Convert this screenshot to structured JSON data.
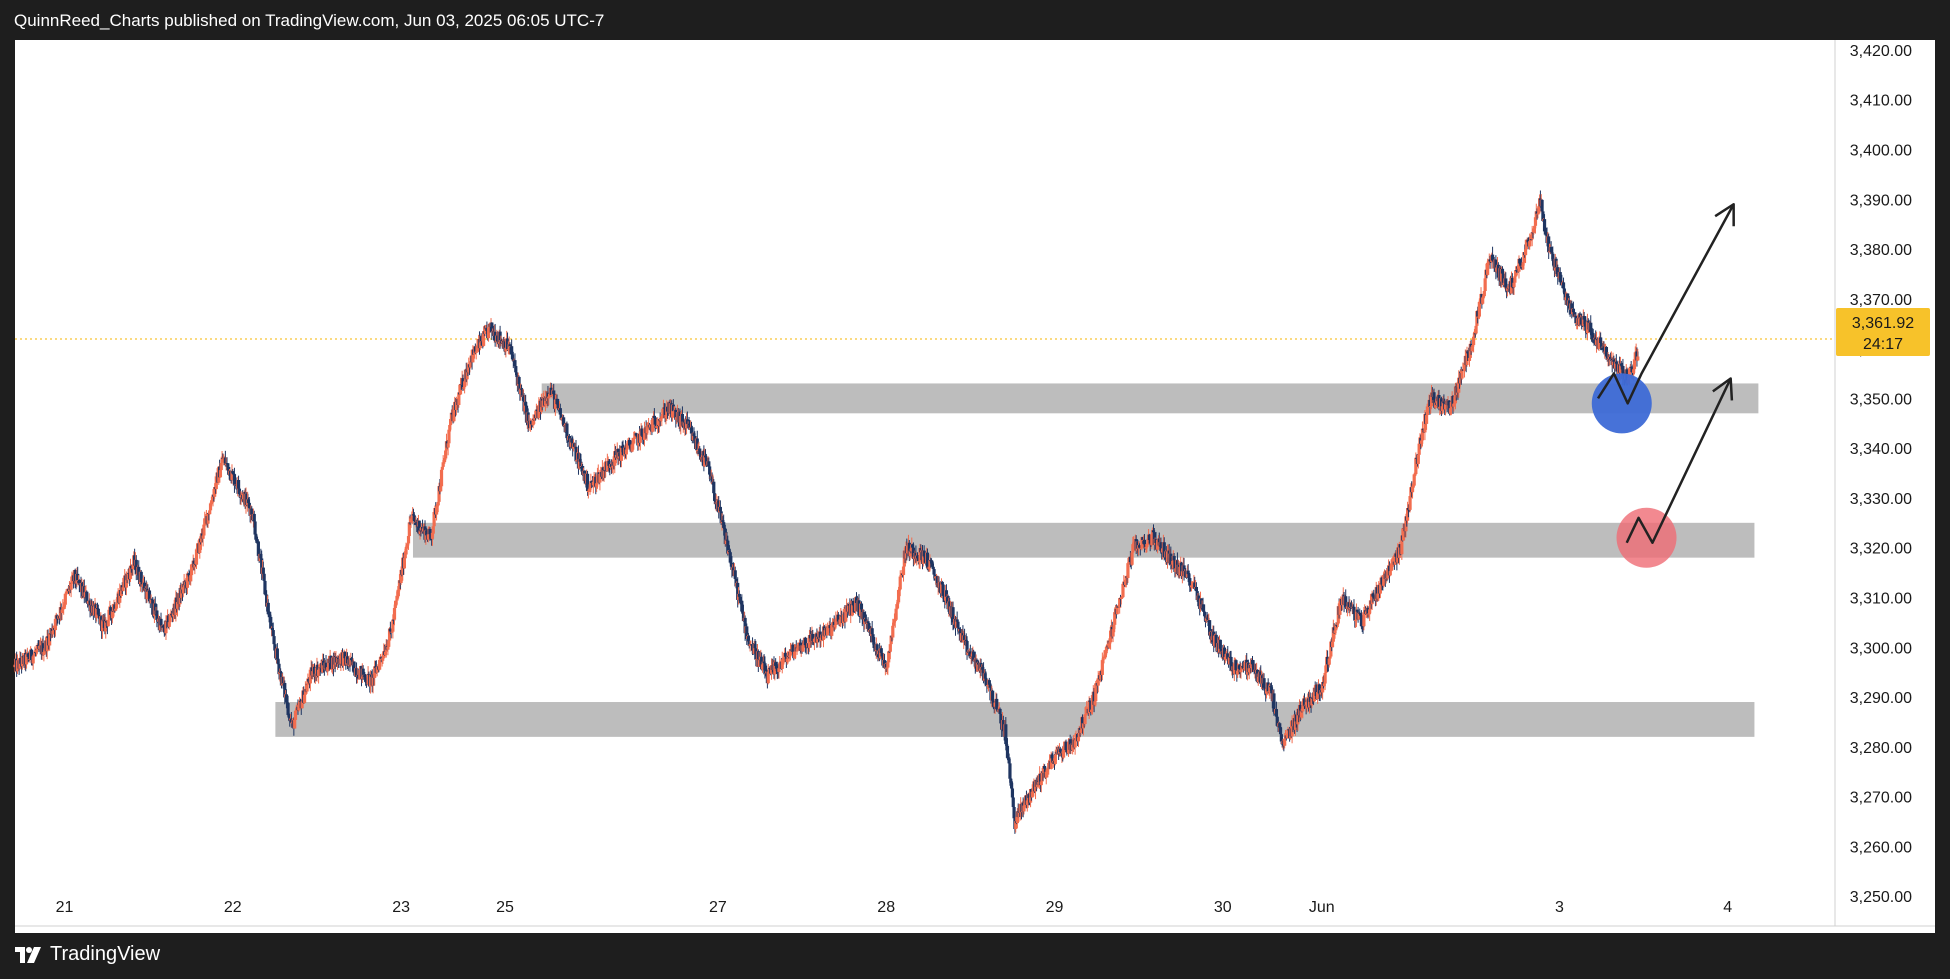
{
  "header": {
    "publish_line": "QuinnReed_Charts published on TradingView.com, Jun 03, 2025 06:05 UTC-7"
  },
  "footer": {
    "brand": "TradingView"
  },
  "price_tag": {
    "price": "3,361.92",
    "countdown": "24:17"
  },
  "colors": {
    "background": "#ffffff",
    "frame": "#1e1e1e",
    "up": "#f26d4f",
    "down": "#1f3561",
    "zone": "#bdbdbd",
    "price_line": "#f7b500",
    "tag": "#f7c22a",
    "blue_marker": "#3d6ad6",
    "red_marker": "#ef6b74",
    "arrow": "#222222"
  },
  "icons": {
    "logo": "tradingview-logo-icon"
  },
  "chart_data": {
    "type": "candlestick",
    "instrument": "",
    "ylim": [
      3244,
      3422
    ],
    "y_ticks": [
      "3,250.00",
      "3,260.00",
      "3,270.00",
      "3,280.00",
      "3,290.00",
      "3,300.00",
      "3,310.00",
      "3,320.00",
      "3,330.00",
      "3,340.00",
      "3,350.00",
      "3,360.00",
      "3,370.00",
      "3,380.00",
      "3,390.00",
      "3,400.00",
      "3,410.00",
      "3,420.00"
    ],
    "x_ticks": [
      {
        "label": "21",
        "t": 5
      },
      {
        "label": "22",
        "t": 22
      },
      {
        "label": "23",
        "t": 39
      },
      {
        "label": "25",
        "t": 49.5
      },
      {
        "label": "27",
        "t": 71
      },
      {
        "label": "28",
        "t": 88
      },
      {
        "label": "29",
        "t": 105
      },
      {
        "label": "30",
        "t": 122
      },
      {
        "label": "Jun",
        "t": 132
      },
      {
        "label": "3",
        "t": 156
      },
      {
        "label": "4",
        "t": 173
      }
    ],
    "last_price": 3361.92,
    "path": [
      [
        0,
        3296
      ],
      [
        3,
        3300
      ],
      [
        6,
        3314
      ],
      [
        9,
        3304
      ],
      [
        12,
        3317
      ],
      [
        15,
        3303
      ],
      [
        18,
        3316
      ],
      [
        21,
        3338
      ],
      [
        24,
        3327
      ],
      [
        26,
        3302
      ],
      [
        28,
        3284
      ],
      [
        30,
        3295
      ],
      [
        33,
        3298
      ],
      [
        36,
        3293
      ],
      [
        38,
        3303
      ],
      [
        40,
        3326
      ],
      [
        42,
        3322
      ],
      [
        44,
        3345
      ],
      [
        46,
        3358
      ],
      [
        48,
        3364
      ],
      [
        50,
        3360
      ],
      [
        52,
        3344
      ],
      [
        54,
        3352
      ],
      [
        56,
        3342
      ],
      [
        58,
        3332
      ],
      [
        60,
        3337
      ],
      [
        63,
        3342
      ],
      [
        66,
        3348
      ],
      [
        68,
        3344
      ],
      [
        70,
        3336
      ],
      [
        72,
        3320
      ],
      [
        74,
        3302
      ],
      [
        76,
        3294
      ],
      [
        79,
        3300
      ],
      [
        82,
        3303
      ],
      [
        85,
        3309
      ],
      [
        88,
        3296
      ],
      [
        90,
        3320
      ],
      [
        92,
        3318
      ],
      [
        94,
        3310
      ],
      [
        96,
        3300
      ],
      [
        98,
        3294
      ],
      [
        100,
        3283
      ],
      [
        101,
        3265
      ],
      [
        103,
        3272
      ],
      [
        105,
        3278
      ],
      [
        107,
        3281
      ],
      [
        109,
        3290
      ],
      [
        111,
        3305
      ],
      [
        113,
        3320
      ],
      [
        115,
        3322
      ],
      [
        117,
        3317
      ],
      [
        119,
        3313
      ],
      [
        121,
        3302
      ],
      [
        123,
        3296
      ],
      [
        125,
        3296
      ],
      [
        127,
        3290
      ],
      [
        128,
        3280
      ],
      [
        130,
        3288
      ],
      [
        132,
        3292
      ],
      [
        134,
        3310
      ],
      [
        136,
        3305
      ],
      [
        138,
        3313
      ],
      [
        140,
        3320
      ],
      [
        142,
        3342
      ],
      [
        143,
        3350
      ],
      [
        145,
        3348
      ],
      [
        147,
        3360
      ],
      [
        149,
        3378
      ],
      [
        151,
        3372
      ],
      [
        153,
        3382
      ],
      [
        154,
        3390
      ],
      [
        155,
        3380
      ],
      [
        157,
        3368
      ],
      [
        159,
        3364
      ],
      [
        161,
        3358
      ],
      [
        163,
        3354
      ],
      [
        164,
        3360
      ]
    ],
    "zones": [
      {
        "from_t": 53.2,
        "to_t": 176.1,
        "low": 3347,
        "high": 3353
      },
      {
        "from_t": 40.2,
        "to_t": 175.7,
        "low": 3318,
        "high": 3325
      },
      {
        "from_t": 26.3,
        "to_t": 175.7,
        "low": 3282,
        "high": 3289
      }
    ],
    "annotations": [
      {
        "kind": "circle",
        "color": "blue",
        "t": 162.3,
        "price": 3349
      },
      {
        "kind": "circle",
        "color": "red",
        "t": 164.8,
        "price": 3322
      },
      {
        "kind": "path",
        "points": [
          [
            159.9,
            3350
          ],
          [
            161.5,
            3355
          ],
          [
            162.9,
            3349
          ],
          [
            164.3,
            3355
          ],
          [
            173.6,
            3389
          ]
        ]
      },
      {
        "kind": "path",
        "points": [
          [
            162.8,
            3321
          ],
          [
            164.0,
            3326
          ],
          [
            165.4,
            3321
          ],
          [
            166.6,
            3326
          ],
          [
            173.3,
            3354
          ]
        ]
      }
    ]
  }
}
